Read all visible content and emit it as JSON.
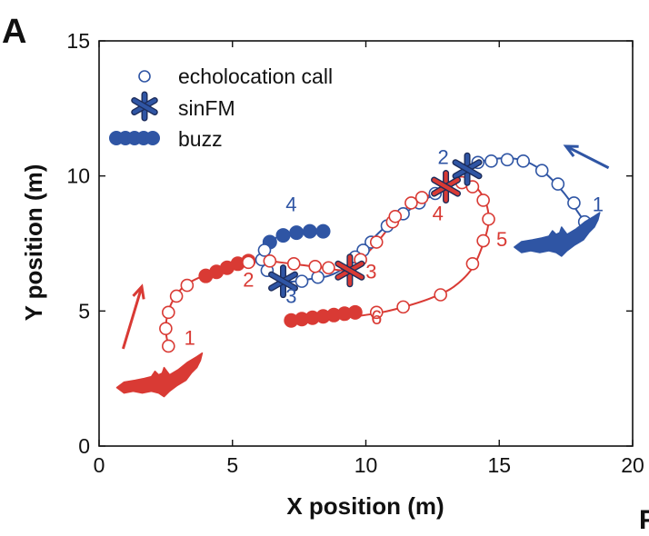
{
  "panel_label": "A",
  "corner_fragment": "F",
  "colors": {
    "blue": "#2f55a4",
    "red": "#d93a34",
    "axis": "#111111"
  },
  "chart_data": {
    "type": "scatter",
    "xlabel": "X position (m)",
    "ylabel": "Y position (m)",
    "xlim": [
      0,
      20
    ],
    "ylim": [
      0,
      15
    ],
    "xticks": [
      0,
      5,
      10,
      15,
      20
    ],
    "yticks": [
      0,
      5,
      10,
      15
    ],
    "grid": false,
    "legend_position": "top-left",
    "legend": [
      {
        "label": "echolocation call",
        "marker": "open-circle"
      },
      {
        "label": "sinFM",
        "marker": "asterisk"
      },
      {
        "label": "buzz",
        "marker": "filled-circle-run"
      }
    ],
    "series": [
      {
        "color": "#2f55a4",
        "trajectory": [
          [
            18.2,
            8.3
          ],
          [
            17.4,
            9.4
          ],
          [
            16.6,
            10.2
          ],
          [
            15.8,
            10.6
          ],
          [
            15.0,
            10.65
          ],
          [
            14.2,
            10.5
          ],
          [
            13.8,
            10.25
          ],
          [
            13.2,
            9.8
          ],
          [
            12.7,
            9.4
          ],
          [
            12.0,
            9.0
          ],
          [
            11.3,
            8.5
          ],
          [
            10.6,
            8.0
          ],
          [
            10.0,
            7.4
          ],
          [
            9.6,
            7.0
          ],
          [
            9.2,
            6.6
          ],
          [
            8.6,
            6.3
          ],
          [
            8.0,
            6.2
          ],
          [
            7.4,
            6.1
          ],
          [
            6.9,
            6.1
          ],
          [
            6.5,
            6.3
          ],
          [
            6.1,
            6.8
          ],
          [
            6.3,
            7.4
          ],
          [
            6.8,
            7.8
          ],
          [
            7.5,
            7.95
          ],
          [
            8.4,
            7.95
          ]
        ],
        "calls": [
          [
            18.2,
            8.3
          ],
          [
            17.8,
            9.0
          ],
          [
            17.2,
            9.7
          ],
          [
            16.6,
            10.2
          ],
          [
            15.9,
            10.55
          ],
          [
            15.3,
            10.6
          ],
          [
            14.7,
            10.55
          ],
          [
            14.2,
            10.5
          ],
          [
            12.6,
            9.35
          ],
          [
            12.0,
            9.0
          ],
          [
            11.4,
            8.6
          ],
          [
            10.8,
            8.15
          ],
          [
            10.2,
            7.55
          ],
          [
            9.9,
            7.25
          ],
          [
            9.6,
            7.0
          ],
          [
            8.2,
            6.25
          ],
          [
            7.6,
            6.1
          ],
          [
            6.3,
            6.5
          ],
          [
            6.1,
            6.9
          ],
          [
            6.2,
            7.25
          ]
        ],
        "sinfm": [
          [
            13.8,
            10.25
          ],
          [
            6.9,
            6.1
          ]
        ],
        "buzz": [
          [
            6.4,
            7.55
          ],
          [
            6.9,
            7.8
          ],
          [
            7.4,
            7.9
          ],
          [
            7.9,
            7.95
          ],
          [
            8.4,
            7.95
          ]
        ],
        "annotations": [
          {
            "text": "1",
            "x": 18.7,
            "y": 8.7
          },
          {
            "text": "2",
            "x": 12.9,
            "y": 10.45
          },
          {
            "text": "3",
            "x": 7.2,
            "y": 5.3
          },
          {
            "text": "4",
            "x": 7.2,
            "y": 8.7
          }
        ]
      },
      {
        "color": "#d93a34",
        "trajectory": [
          [
            2.6,
            3.7
          ],
          [
            2.5,
            4.3
          ],
          [
            2.6,
            5.0
          ],
          [
            2.9,
            5.6
          ],
          [
            3.3,
            6.0
          ],
          [
            3.9,
            6.3
          ],
          [
            4.6,
            6.55
          ],
          [
            5.3,
            6.8
          ],
          [
            6.0,
            6.9
          ],
          [
            6.8,
            6.8
          ],
          [
            7.6,
            6.7
          ],
          [
            8.4,
            6.6
          ],
          [
            9.4,
            6.5
          ],
          [
            9.8,
            6.9
          ],
          [
            10.3,
            7.4
          ],
          [
            10.8,
            8.0
          ],
          [
            11.3,
            8.6
          ],
          [
            11.8,
            9.0
          ],
          [
            12.4,
            9.3
          ],
          [
            12.9,
            9.55
          ],
          [
            13.5,
            9.75
          ],
          [
            14.1,
            9.6
          ],
          [
            14.5,
            9.0
          ],
          [
            14.6,
            8.3
          ],
          [
            14.4,
            7.5
          ],
          [
            14.0,
            6.6
          ],
          [
            13.3,
            5.9
          ],
          [
            12.5,
            5.5
          ],
          [
            11.6,
            5.2
          ],
          [
            10.6,
            4.95
          ],
          [
            9.6,
            4.8
          ],
          [
            8.6,
            4.7
          ],
          [
            7.6,
            4.65
          ],
          [
            7.1,
            4.6
          ]
        ],
        "calls": [
          [
            2.6,
            3.7
          ],
          [
            2.5,
            4.35
          ],
          [
            2.6,
            4.95
          ],
          [
            2.9,
            5.55
          ],
          [
            3.3,
            5.95
          ],
          [
            5.6,
            6.8
          ],
          [
            6.4,
            6.85
          ],
          [
            7.3,
            6.75
          ],
          [
            8.1,
            6.65
          ],
          [
            8.6,
            6.6
          ],
          [
            9.8,
            6.9
          ],
          [
            10.4,
            7.55
          ],
          [
            11.0,
            8.3
          ],
          [
            11.1,
            8.5
          ],
          [
            11.7,
            9.0
          ],
          [
            12.1,
            9.2
          ],
          [
            13.6,
            9.75
          ],
          [
            14.0,
            9.6
          ],
          [
            14.4,
            9.1
          ],
          [
            14.6,
            8.4
          ],
          [
            14.4,
            7.6
          ],
          [
            14.0,
            6.75
          ],
          [
            12.8,
            5.6
          ],
          [
            11.4,
            5.15
          ],
          [
            10.4,
            4.95
          ]
        ],
        "sinfm": [
          [
            13.0,
            9.6
          ],
          [
            9.4,
            6.5
          ]
        ],
        "buzz": [
          [
            4.0,
            6.3
          ],
          [
            4.4,
            6.45
          ],
          [
            4.8,
            6.6
          ],
          [
            5.2,
            6.75
          ],
          [
            5.6,
            6.85
          ],
          [
            7.2,
            4.65
          ],
          [
            7.6,
            4.7
          ],
          [
            8.0,
            4.75
          ],
          [
            8.4,
            4.8
          ],
          [
            8.8,
            4.85
          ],
          [
            9.2,
            4.9
          ],
          [
            9.6,
            4.95
          ]
        ],
        "annotations": [
          {
            "text": "1",
            "x": 3.4,
            "y": 3.75
          },
          {
            "text": "2",
            "x": 5.6,
            "y": 5.9
          },
          {
            "text": "3",
            "x": 10.2,
            "y": 6.2
          },
          {
            "text": "4",
            "x": 12.7,
            "y": 8.35
          },
          {
            "text": "5",
            "x": 15.1,
            "y": 7.4
          },
          {
            "text": "6",
            "x": 10.4,
            "y": 4.5
          }
        ]
      }
    ],
    "direction_arrows": [
      {
        "color": "#2f55a4",
        "from": [
          19.1,
          10.3
        ],
        "to": [
          17.5,
          11.1
        ]
      },
      {
        "color": "#d93a34",
        "from": [
          0.9,
          3.6
        ],
        "to": [
          1.6,
          5.9
        ]
      }
    ],
    "bat_icons": [
      {
        "color": "#2f55a4",
        "x": 17.2,
        "y": 7.5
      },
      {
        "color": "#d93a34",
        "x": 2.3,
        "y": 2.3
      }
    ]
  }
}
